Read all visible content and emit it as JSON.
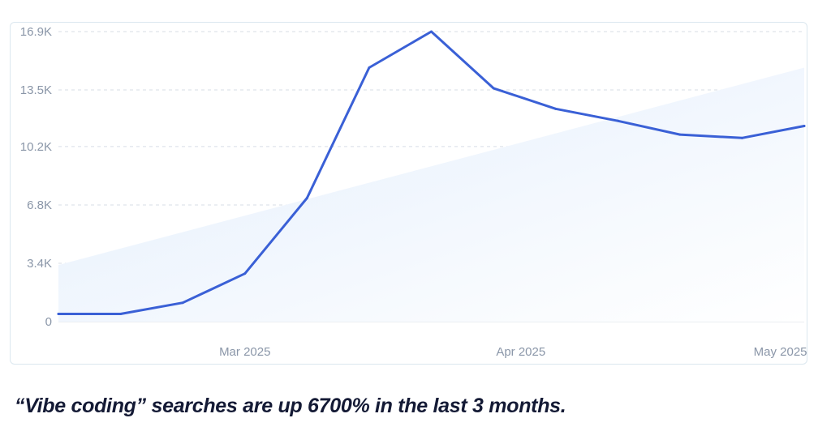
{
  "caption": "“Vibe coding” searches are up 6700% in the last 3 months.",
  "colors": {
    "line": "#3a60d6",
    "area_start": "#e3eefc",
    "area_end": "#ffffff",
    "grid": "#d7dde6",
    "tick_text": "#8a96a8",
    "card_border": "#dbe7ef",
    "caption": "#141a35"
  },
  "chart_data": {
    "type": "line",
    "y_ticks": [
      "0",
      "3.4K",
      "6.8K",
      "10.2K",
      "13.5K",
      "16.9K"
    ],
    "y_tick_values": [
      0,
      3400,
      6800,
      10200,
      13500,
      16900
    ],
    "x_ticks": [
      "Mar 2025",
      "Apr 2025",
      "May 2025"
    ],
    "ylim": [
      0,
      16900
    ],
    "grid": true,
    "series": [
      {
        "values": [
          450,
          450,
          1100,
          2800,
          7200,
          14800,
          16900,
          13600,
          12400,
          11700,
          10900,
          10700,
          11400
        ]
      }
    ],
    "trend_area": {
      "start": 3300,
      "end": 14800
    }
  }
}
